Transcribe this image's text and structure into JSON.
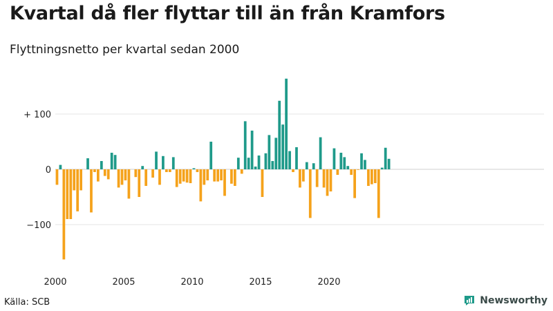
{
  "title": "Kvartal då fler flyttar till än från Kramfors",
  "subtitle": "Flyttningsnetto per kvartal sedan 2000",
  "source": "Källa: SCB",
  "brand": "Newsworthy",
  "colors": {
    "positive": "#1f9a8a",
    "negative": "#f5a21b",
    "grid": "#e4e4e4"
  },
  "chart_data": {
    "type": "bar",
    "title": "Kvartal då fler flyttar till än från Kramfors",
    "subtitle": "Flyttningsnetto per kvartal sedan 2000",
    "ylim": [
      -170,
      170
    ],
    "y_ticks": [
      100,
      0,
      -100
    ],
    "y_tick_labels": [
      "+ 100",
      "0",
      "−100"
    ],
    "x_ticks": [
      2000,
      2005,
      2010,
      2015,
      2020
    ],
    "x_tick_labels": [
      "2000",
      "2005",
      "2010",
      "2015",
      "2020"
    ],
    "x_start_year": 2000,
    "grid": true,
    "values": [
      -28,
      8,
      -163,
      -90,
      -90,
      -38,
      -76,
      -38,
      0,
      20,
      -78,
      -5,
      -22,
      15,
      -12,
      -18,
      30,
      26,
      -33,
      -28,
      -20,
      -53,
      0,
      -14,
      -50,
      6,
      -30,
      0,
      -15,
      32,
      -28,
      24,
      -5,
      -5,
      22,
      -32,
      -26,
      -22,
      -24,
      -25,
      2,
      -5,
      -58,
      -28,
      -20,
      50,
      -22,
      -22,
      -20,
      -48,
      0,
      -26,
      -30,
      21,
      -8,
      87,
      21,
      70,
      5,
      25,
      -50,
      29,
      62,
      15,
      57,
      124,
      81,
      164,
      33,
      -5,
      40,
      -33,
      -22,
      13,
      -88,
      11,
      -32,
      58,
      -33,
      -48,
      -40,
      38,
      -10,
      30,
      22,
      6,
      -10,
      -52,
      -1,
      29,
      17,
      -30,
      -27,
      -25,
      -88,
      3,
      39,
      19
    ]
  }
}
